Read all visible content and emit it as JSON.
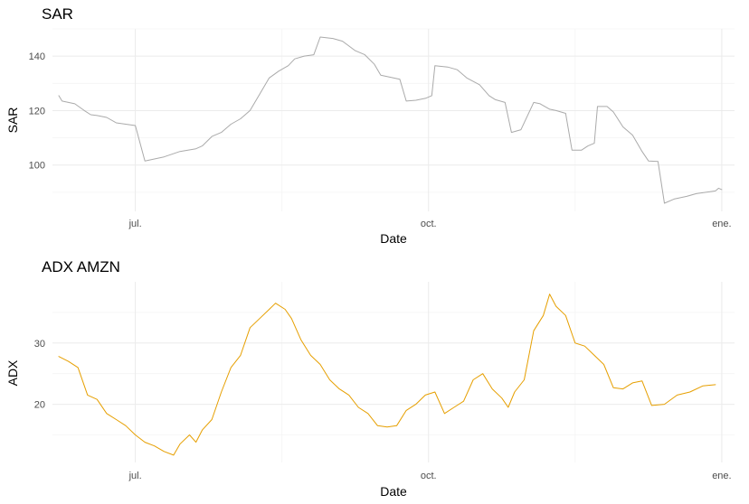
{
  "chart_data": [
    {
      "id": "sar",
      "type": "line",
      "title": "SAR",
      "xlabel": "Date",
      "ylabel": "SAR",
      "xlim": [
        "2020-06-05",
        "2021-01-05"
      ],
      "ylim": [
        83,
        150
      ],
      "x_ticks": [
        {
          "date": "2020-07-01",
          "label": "jul."
        },
        {
          "date": "2020-10-01",
          "label": "oct."
        },
        {
          "date": "2021-01-01",
          "label": "ene."
        }
      ],
      "y_ticks": [
        100,
        120,
        140
      ],
      "grid": true,
      "series": [
        {
          "color": "#aaaaaa",
          "points": [
            [
              "2020-06-07",
              125.5
            ],
            [
              "2020-06-08",
              123.5
            ],
            [
              "2020-06-10",
              123
            ],
            [
              "2020-06-12",
              122.5
            ],
            [
              "2020-06-15",
              120
            ],
            [
              "2020-06-17",
              118.5
            ],
            [
              "2020-06-19",
              118.2
            ],
            [
              "2020-06-22",
              117.5
            ],
            [
              "2020-06-25",
              115.5
            ],
            [
              "2020-06-28",
              115
            ],
            [
              "2020-07-01",
              114.5
            ],
            [
              "2020-07-04",
              101.5
            ],
            [
              "2020-07-06",
              102
            ],
            [
              "2020-07-10",
              103
            ],
            [
              "2020-07-15",
              105
            ],
            [
              "2020-07-20",
              106
            ],
            [
              "2020-07-22",
              107
            ],
            [
              "2020-07-25",
              110.5
            ],
            [
              "2020-07-28",
              112
            ],
            [
              "2020-07-31",
              115
            ],
            [
              "2020-08-03",
              117
            ],
            [
              "2020-08-06",
              120
            ],
            [
              "2020-08-09",
              126
            ],
            [
              "2020-08-12",
              132
            ],
            [
              "2020-08-15",
              134.5
            ],
            [
              "2020-08-18",
              136.5
            ],
            [
              "2020-08-20",
              139
            ],
            [
              "2020-08-23",
              140
            ],
            [
              "2020-08-26",
              140.5
            ],
            [
              "2020-08-28",
              147
            ],
            [
              "2020-09-01",
              146.5
            ],
            [
              "2020-09-04",
              145.5
            ],
            [
              "2020-09-08",
              142
            ],
            [
              "2020-09-11",
              140.5
            ],
            [
              "2020-09-14",
              137
            ],
            [
              "2020-09-16",
              133
            ],
            [
              "2020-09-20",
              132
            ],
            [
              "2020-09-22",
              131.5
            ],
            [
              "2020-09-24",
              123.5
            ],
            [
              "2020-09-27",
              123.8
            ],
            [
              "2020-09-30",
              124.5
            ],
            [
              "2020-10-02",
              125.5
            ],
            [
              "2020-10-03",
              136.5
            ],
            [
              "2020-10-07",
              136
            ],
            [
              "2020-10-10",
              135
            ],
            [
              "2020-10-13",
              132
            ],
            [
              "2020-10-17",
              129.5
            ],
            [
              "2020-10-20",
              125.5
            ],
            [
              "2020-10-22",
              124
            ],
            [
              "2020-10-25",
              123
            ],
            [
              "2020-10-27",
              112
            ],
            [
              "2020-10-30",
              113
            ],
            [
              "2020-11-03",
              123
            ],
            [
              "2020-11-05",
              122.5
            ],
            [
              "2020-11-08",
              120.5
            ],
            [
              "2020-11-10",
              120
            ],
            [
              "2020-11-13",
              119
            ],
            [
              "2020-11-15",
              105.5
            ],
            [
              "2020-11-18",
              105.5
            ],
            [
              "2020-11-20",
              107
            ],
            [
              "2020-11-22",
              108
            ],
            [
              "2020-11-23",
              121.5
            ],
            [
              "2020-11-26",
              121.5
            ],
            [
              "2020-11-28",
              119.5
            ],
            [
              "2020-12-01",
              114
            ],
            [
              "2020-12-04",
              111
            ],
            [
              "2020-12-07",
              105
            ],
            [
              "2020-12-09",
              101.5
            ],
            [
              "2020-12-12",
              101.3
            ],
            [
              "2020-12-14",
              86
            ],
            [
              "2020-12-17",
              87.5
            ],
            [
              "2020-12-21",
              88.5
            ],
            [
              "2020-12-24",
              89.5
            ],
            [
              "2020-12-27",
              90
            ],
            [
              "2020-12-30",
              90.5
            ],
            [
              "2021-01-01",
              91
            ],
            [
              "2020-12-31",
              91.5
            ]
          ]
        }
      ]
    },
    {
      "id": "adx",
      "type": "line",
      "title": "ADX AMZN",
      "xlabel": "Date",
      "ylabel": "ADX",
      "xlim": [
        "2020-06-05",
        "2021-01-05"
      ],
      "ylim": [
        10.5,
        40
      ],
      "x_ticks": [
        {
          "date": "2020-07-01",
          "label": "jul."
        },
        {
          "date": "2020-10-01",
          "label": "oct."
        },
        {
          "date": "2021-01-01",
          "label": "ene."
        }
      ],
      "y_ticks": [
        20,
        30
      ],
      "grid": true,
      "series": [
        {
          "color": "#e69f00",
          "points": [
            [
              "2020-06-07",
              27.8
            ],
            [
              "2020-06-10",
              27
            ],
            [
              "2020-06-13",
              26
            ],
            [
              "2020-06-16",
              21.5
            ],
            [
              "2020-06-19",
              20.8
            ],
            [
              "2020-06-22",
              18.5
            ],
            [
              "2020-06-25",
              17.5
            ],
            [
              "2020-06-28",
              16.5
            ],
            [
              "2020-07-01",
              15
            ],
            [
              "2020-07-04",
              13.8
            ],
            [
              "2020-07-07",
              13.2
            ],
            [
              "2020-07-10",
              12.3
            ],
            [
              "2020-07-13",
              11.7
            ],
            [
              "2020-07-15",
              13.5
            ],
            [
              "2020-07-18",
              15
            ],
            [
              "2020-07-20",
              13.8
            ],
            [
              "2020-07-22",
              15.8
            ],
            [
              "2020-07-25",
              17.5
            ],
            [
              "2020-07-28",
              22
            ],
            [
              "2020-07-31",
              26
            ],
            [
              "2020-08-03",
              28
            ],
            [
              "2020-08-06",
              32.5
            ],
            [
              "2020-08-09",
              34
            ],
            [
              "2020-08-12",
              35.5
            ],
            [
              "2020-08-14",
              36.5
            ],
            [
              "2020-08-17",
              35.5
            ],
            [
              "2020-08-19",
              34
            ],
            [
              "2020-08-22",
              30.5
            ],
            [
              "2020-08-25",
              28
            ],
            [
              "2020-08-28",
              26.5
            ],
            [
              "2020-08-31",
              24
            ],
            [
              "2020-09-03",
              22.5
            ],
            [
              "2020-09-06",
              21.5
            ],
            [
              "2020-09-09",
              19.5
            ],
            [
              "2020-09-12",
              18.5
            ],
            [
              "2020-09-15",
              16.5
            ],
            [
              "2020-09-18",
              16.3
            ],
            [
              "2020-09-21",
              16.5
            ],
            [
              "2020-09-24",
              19
            ],
            [
              "2020-09-27",
              20
            ],
            [
              "2020-09-30",
              21.5
            ],
            [
              "2020-10-03",
              22
            ],
            [
              "2020-10-06",
              18.5
            ],
            [
              "2020-10-09",
              19.5
            ],
            [
              "2020-10-12",
              20.5
            ],
            [
              "2020-10-15",
              24
            ],
            [
              "2020-10-18",
              25
            ],
            [
              "2020-10-21",
              22.5
            ],
            [
              "2020-10-24",
              21
            ],
            [
              "2020-10-26",
              19.5
            ],
            [
              "2020-10-28",
              22
            ],
            [
              "2020-10-31",
              24
            ],
            [
              "2020-11-03",
              32
            ],
            [
              "2020-11-06",
              34.5
            ],
            [
              "2020-11-08",
              38
            ],
            [
              "2020-11-10",
              36
            ],
            [
              "2020-11-13",
              34.5
            ],
            [
              "2020-11-16",
              30
            ],
            [
              "2020-11-19",
              29.5
            ],
            [
              "2020-11-22",
              28
            ],
            [
              "2020-11-25",
              26.5
            ],
            [
              "2020-11-28",
              22.7
            ],
            [
              "2020-12-01",
              22.5
            ],
            [
              "2020-12-04",
              23.5
            ],
            [
              "2020-12-07",
              23.8
            ],
            [
              "2020-12-10",
              19.8
            ],
            [
              "2020-12-14",
              20
            ],
            [
              "2020-12-18",
              21.5
            ],
            [
              "2020-12-22",
              22
            ],
            [
              "2020-12-26",
              23
            ],
            [
              "2020-12-30",
              23.2
            ]
          ]
        }
      ]
    }
  ]
}
